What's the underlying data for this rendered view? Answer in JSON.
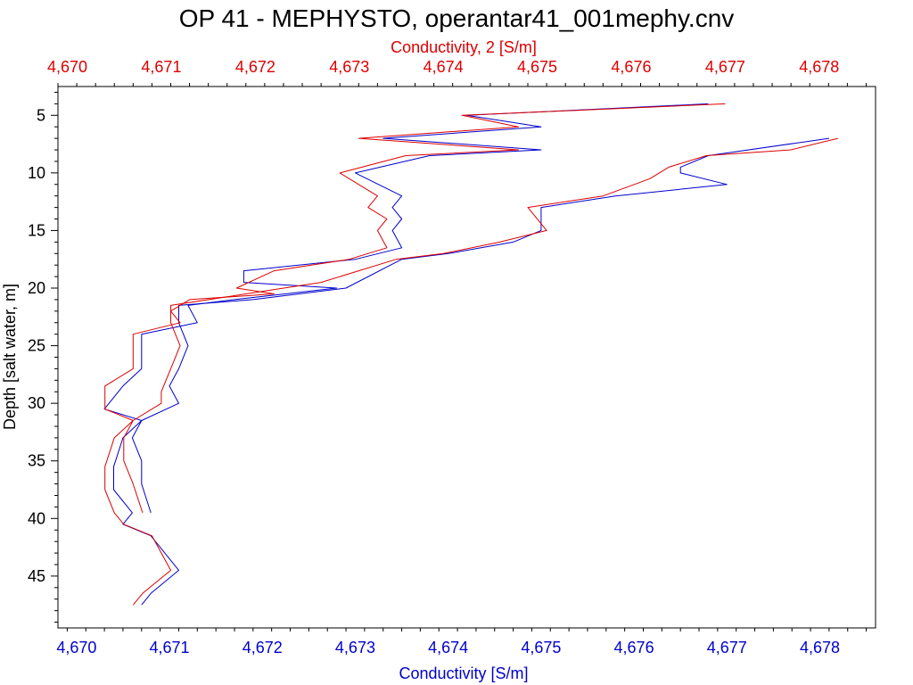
{
  "chart_data": {
    "type": "line",
    "title": "OP 41 - MEPHYSTO, operantar41_001mephy.cnv",
    "orientation": "profile",
    "colors": {
      "axis_bottom": "#0000cc",
      "axis_top": "#dd0000",
      "frame": "#000000"
    },
    "bottom_axis": {
      "label": "Conductivity [S/m]",
      "range": [
        4.6698,
        4.6786
      ],
      "ticks": [
        "4,670",
        "4,671",
        "4,672",
        "4,673",
        "4,674",
        "4,675",
        "4,676",
        "4,677",
        "4,678"
      ],
      "tick_values": [
        4.67,
        4.671,
        4.672,
        4.673,
        4.674,
        4.675,
        4.676,
        4.677,
        4.678
      ]
    },
    "top_axis": {
      "label": "Conductivity, 2 [S/m]",
      "range": [
        4.6699,
        4.6786
      ],
      "ticks": [
        "4,670",
        "4,671",
        "4,672",
        "4,673",
        "4,674",
        "4,675",
        "4,676",
        "4,677",
        "4,678"
      ],
      "tick_values": [
        4.67,
        4.671,
        4.672,
        4.673,
        4.674,
        4.675,
        4.676,
        4.677,
        4.678
      ]
    },
    "y_axis": {
      "label": "Depth [salt water, m]",
      "range": [
        2.5,
        49.5
      ],
      "inverted": true,
      "ticks": [
        "5",
        "10",
        "15",
        "20",
        "25",
        "30",
        "35",
        "40",
        "45"
      ],
      "tick_values": [
        5,
        10,
        15,
        20,
        25,
        30,
        35,
        40,
        45
      ]
    },
    "series": [
      {
        "axis": "bottom",
        "color": "#0000cc",
        "points": [
          [
            4.6768,
            4.0
          ],
          [
            4.6742,
            5.0
          ],
          [
            4.675,
            6.0
          ],
          [
            4.6733,
            7.0
          ],
          [
            4.675,
            8.0
          ],
          [
            4.6738,
            8.5
          ],
          [
            4.673,
            10.0
          ],
          [
            4.6735,
            12.0
          ],
          [
            4.6734,
            13.0
          ],
          [
            4.6735,
            14.0
          ],
          [
            4.6734,
            15.0
          ],
          [
            4.6735,
            16.5
          ],
          [
            4.673,
            17.5
          ],
          [
            4.6718,
            18.5
          ],
          [
            4.6718,
            19.5
          ],
          [
            4.6728,
            20.0
          ],
          [
            4.6717,
            21.0
          ],
          [
            4.6712,
            21.5
          ],
          [
            4.6713,
            23.0
          ],
          [
            4.6707,
            24.0
          ],
          [
            4.6707,
            25.0
          ],
          [
            4.6707,
            26.0
          ],
          [
            4.6707,
            27.0
          ],
          [
            4.6705,
            28.5
          ],
          [
            4.6703,
            30.5
          ],
          [
            4.6707,
            31.5
          ],
          [
            4.6705,
            33.0
          ],
          [
            4.6704,
            35.5
          ],
          [
            4.6704,
            37.5
          ],
          [
            4.6706,
            39.5
          ],
          [
            4.6705,
            40.5
          ],
          [
            4.6708,
            41.5
          ],
          [
            4.6711,
            44.5
          ],
          [
            4.6708,
            46.5
          ],
          [
            4.6707,
            47.5
          ]
        ]
      },
      {
        "axis": "bottom",
        "color": "#0000cc",
        "points": [
          [
            4.6781,
            7.0
          ],
          [
            4.6768,
            8.5
          ],
          [
            4.6765,
            9.5
          ],
          [
            4.6765,
            10.0
          ],
          [
            4.677,
            11.0
          ],
          [
            4.6758,
            12.0
          ],
          [
            4.675,
            13.0
          ],
          [
            4.675,
            15.0
          ],
          [
            4.6747,
            16.0
          ],
          [
            4.674,
            17.0
          ],
          [
            4.6735,
            17.5
          ],
          [
            4.6729,
            20.0
          ],
          [
            4.6719,
            21.0
          ],
          [
            4.6711,
            21.5
          ],
          [
            4.6711,
            23.0
          ],
          [
            4.6712,
            25.0
          ],
          [
            4.6711,
            27.0
          ],
          [
            4.671,
            28.5
          ],
          [
            4.6711,
            30.0
          ],
          [
            4.6707,
            31.5
          ],
          [
            4.6706,
            33.0
          ],
          [
            4.6707,
            35.0
          ],
          [
            4.6707,
            37.0
          ],
          [
            4.6708,
            39.5
          ]
        ]
      },
      {
        "axis": "top",
        "color": "#dd0000",
        "points": [
          [
            4.677,
            4.0
          ],
          [
            4.6742,
            5.0
          ],
          [
            4.6748,
            6.0
          ],
          [
            4.6731,
            7.0
          ],
          [
            4.6748,
            8.0
          ],
          [
            4.6736,
            8.5
          ],
          [
            4.6729,
            10.0
          ],
          [
            4.6733,
            12.0
          ],
          [
            4.6732,
            13.0
          ],
          [
            4.6734,
            14.0
          ],
          [
            4.6733,
            15.0
          ],
          [
            4.6734,
            16.5
          ],
          [
            4.673,
            17.5
          ],
          [
            4.6722,
            18.5
          ],
          [
            4.6718,
            20.0
          ],
          [
            4.6722,
            20.5
          ],
          [
            4.6713,
            21.0
          ],
          [
            4.6711,
            22.0
          ],
          [
            4.6712,
            23.0
          ],
          [
            4.6707,
            24.0
          ],
          [
            4.6707,
            26.0
          ],
          [
            4.6707,
            27.0
          ],
          [
            4.6704,
            28.5
          ],
          [
            4.6704,
            30.5
          ],
          [
            4.6707,
            31.5
          ],
          [
            4.6705,
            33.0
          ],
          [
            4.6704,
            35.5
          ],
          [
            4.6704,
            37.5
          ],
          [
            4.6705,
            39.5
          ],
          [
            4.6706,
            40.5
          ],
          [
            4.6709,
            41.5
          ],
          [
            4.6711,
            44.5
          ],
          [
            4.6708,
            46.5
          ],
          [
            4.6707,
            47.5
          ]
        ]
      },
      {
        "axis": "top",
        "color": "#dd0000",
        "points": [
          [
            4.6782,
            7.0
          ],
          [
            4.6777,
            8.0
          ],
          [
            4.6768,
            8.5
          ],
          [
            4.6764,
            9.5
          ],
          [
            4.6762,
            10.5
          ],
          [
            4.6757,
            12.0
          ],
          [
            4.6749,
            13.0
          ],
          [
            4.6751,
            15.0
          ],
          [
            4.6746,
            16.0
          ],
          [
            4.674,
            17.0
          ],
          [
            4.6735,
            17.5
          ],
          [
            4.6727,
            19.5
          ],
          [
            4.6719,
            20.5
          ],
          [
            4.6711,
            21.5
          ],
          [
            4.6711,
            23.0
          ],
          [
            4.6712,
            25.0
          ],
          [
            4.6711,
            27.0
          ],
          [
            4.671,
            29.0
          ],
          [
            4.671,
            30.0
          ],
          [
            4.6707,
            31.5
          ],
          [
            4.6706,
            33.0
          ],
          [
            4.6706,
            35.0
          ],
          [
            4.6707,
            37.0
          ],
          [
            4.6708,
            39.5
          ]
        ]
      }
    ]
  }
}
